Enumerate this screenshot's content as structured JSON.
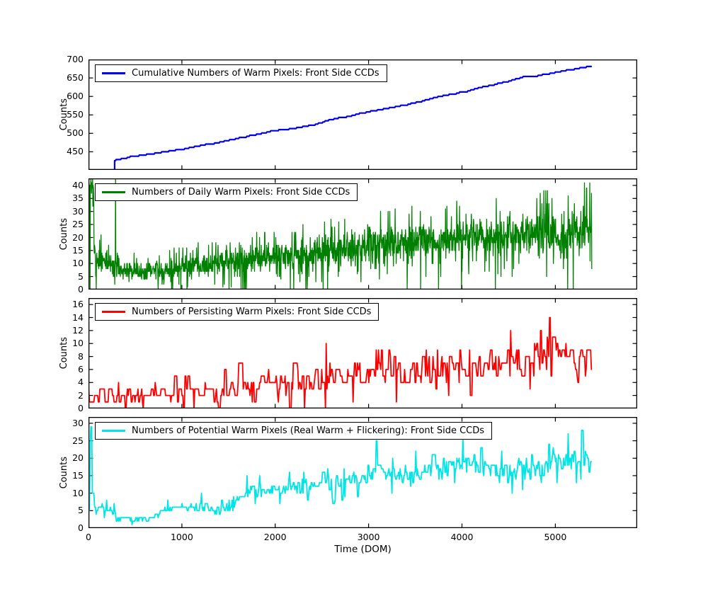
{
  "figure": {
    "background": "#ffffff",
    "xlabel": "Time (DOM)",
    "x_ticks": [
      0,
      1000,
      2000,
      3000,
      4000,
      5000
    ],
    "xlim": [
      0,
      5877
    ],
    "frame_color": "#000000"
  },
  "chart_data": [
    {
      "type": "line",
      "mode": "cumulative",
      "legend": "Cumulative Numbers of Warm Pixels: Front Side CCDs",
      "ylabel": "Counts",
      "color": "#0000ee",
      "line_width": 2.2,
      "ylim": [
        401,
        700
      ],
      "yticks": [
        450,
        500,
        550,
        600,
        650,
        700
      ],
      "x_range": [
        280,
        5390
      ],
      "step": 8,
      "seed": 7,
      "anchors": [
        [
          280,
          428
        ],
        [
          450,
          437
        ],
        [
          700,
          446
        ],
        [
          1000,
          458
        ],
        [
          1200,
          468
        ],
        [
          1400,
          477
        ],
        [
          1600,
          487
        ],
        [
          1800,
          498
        ],
        [
          2000,
          508
        ],
        [
          2200,
          514
        ],
        [
          2400,
          523
        ],
        [
          2600,
          538
        ],
        [
          2800,
          548
        ],
        [
          3000,
          560
        ],
        [
          3200,
          568
        ],
        [
          3400,
          578
        ],
        [
          3600,
          590
        ],
        [
          3800,
          603
        ],
        [
          4000,
          612
        ],
        [
          4200,
          625
        ],
        [
          4400,
          636
        ],
        [
          4500,
          642
        ],
        [
          4650,
          653
        ],
        [
          4800,
          656
        ],
        [
          5000,
          666
        ],
        [
          5200,
          675
        ],
        [
          5390,
          683
        ]
      ]
    },
    {
      "type": "line",
      "mode": "noisy",
      "legend": "Numbers of Daily Warm Pixels: Front Side CCDs",
      "ylabel": "Counts",
      "color": "#008000",
      "line_width": 1.3,
      "ylim": [
        0,
        42.7
      ],
      "yticks": [
        0,
        5,
        10,
        15,
        20,
        25,
        30,
        35,
        40
      ],
      "x_range": [
        2,
        5390
      ],
      "step": 3,
      "seed": 3,
      "zero_dip": 0.012,
      "hold_prob": 0,
      "trend": [
        [
          0,
          39,
          7
        ],
        [
          55,
          39,
          7
        ],
        [
          62,
          12,
          5
        ],
        [
          250,
          10,
          5
        ],
        [
          295,
          10,
          5
        ],
        [
          310,
          7,
          4
        ],
        [
          700,
          7,
          4
        ],
        [
          1000,
          8,
          5
        ],
        [
          1400,
          10,
          5
        ],
        [
          1800,
          12,
          6
        ],
        [
          2200,
          13,
          6
        ],
        [
          2600,
          15,
          7
        ],
        [
          3000,
          17,
          8
        ],
        [
          3500,
          18,
          8
        ],
        [
          4000,
          20,
          8
        ],
        [
          4500,
          21,
          9
        ],
        [
          5000,
          21,
          9
        ],
        [
          5390,
          24,
          10
        ]
      ],
      "spikes": [
        [
          290,
          43
        ],
        [
          5335,
          39
        ]
      ]
    },
    {
      "type": "line",
      "mode": "noisy",
      "legend": "Numbers of Persisting Warm Pixels: Front Side CCDs",
      "ylabel": "Counts",
      "color": "#ff0000",
      "line_width": 1.8,
      "ylim": [
        0,
        17
      ],
      "yticks": [
        0,
        2,
        4,
        6,
        8,
        10,
        12,
        14,
        16
      ],
      "x_range": [
        2,
        5390
      ],
      "step": 8,
      "seed": 5,
      "zero_dip": 0.006,
      "hold_prob": 0.45,
      "trend": [
        [
          0,
          2,
          2
        ],
        [
          300,
          1.5,
          1.5
        ],
        [
          700,
          2,
          1.5
        ],
        [
          1100,
          2.5,
          2
        ],
        [
          1500,
          2.5,
          2
        ],
        [
          1900,
          3.5,
          2.5
        ],
        [
          2300,
          4,
          2.5
        ],
        [
          2700,
          5.5,
          3
        ],
        [
          3100,
          6,
          3
        ],
        [
          3500,
          6,
          3
        ],
        [
          3900,
          6.5,
          3
        ],
        [
          4300,
          7,
          3.5
        ],
        [
          4700,
          8,
          3.5
        ],
        [
          5000,
          8,
          3.5
        ],
        [
          5390,
          7,
          3
        ]
      ],
      "spikes": [
        [
          4940,
          14
        ]
      ]
    },
    {
      "type": "line",
      "mode": "noisy",
      "legend": "Numbers of Potential Warm Pixels (Real Warm + Flickering): Front Side CCDs",
      "ylabel": "Counts",
      "color": "#00e5e5",
      "line_width": 1.8,
      "ylim": [
        0,
        31.8
      ],
      "yticks": [
        0,
        5,
        10,
        15,
        20,
        25,
        30
      ],
      "x_range": [
        2,
        5390
      ],
      "step": 8,
      "seed": 9,
      "zero_dip": 0,
      "hold_prob": 0.3,
      "trend": [
        [
          0,
          2,
          1.5
        ],
        [
          18,
          24,
          5
        ],
        [
          30,
          14,
          5
        ],
        [
          45,
          8,
          3
        ],
        [
          80,
          5,
          2
        ],
        [
          150,
          6,
          2
        ],
        [
          220,
          5,
          2
        ],
        [
          300,
          3,
          1.5
        ],
        [
          500,
          2.5,
          1
        ],
        [
          650,
          3,
          1
        ],
        [
          800,
          5,
          1.5
        ],
        [
          1000,
          6,
          1.5
        ],
        [
          1250,
          6,
          2
        ],
        [
          1400,
          5.5,
          2
        ],
        [
          1550,
          7,
          2
        ],
        [
          1700,
          10.5,
          2.5
        ],
        [
          1900,
          11,
          3
        ],
        [
          2100,
          11.5,
          3
        ],
        [
          2400,
          12,
          3
        ],
        [
          2700,
          14,
          3.5
        ],
        [
          2900,
          15,
          3.5
        ],
        [
          3100,
          17,
          4
        ],
        [
          3300,
          15,
          3.5
        ],
        [
          3600,
          16,
          3.5
        ],
        [
          3900,
          17.5,
          4
        ],
        [
          4100,
          19,
          4
        ],
        [
          4400,
          15.5,
          3.5
        ],
        [
          4700,
          17,
          4
        ],
        [
          5000,
          18,
          4
        ],
        [
          5200,
          20.5,
          4.5
        ],
        [
          5390,
          17,
          4
        ]
      ],
      "spikes": [
        [
          25,
          29
        ],
        [
          3080,
          25
        ],
        [
          4010,
          26
        ],
        [
          5280,
          28
        ]
      ]
    }
  ]
}
